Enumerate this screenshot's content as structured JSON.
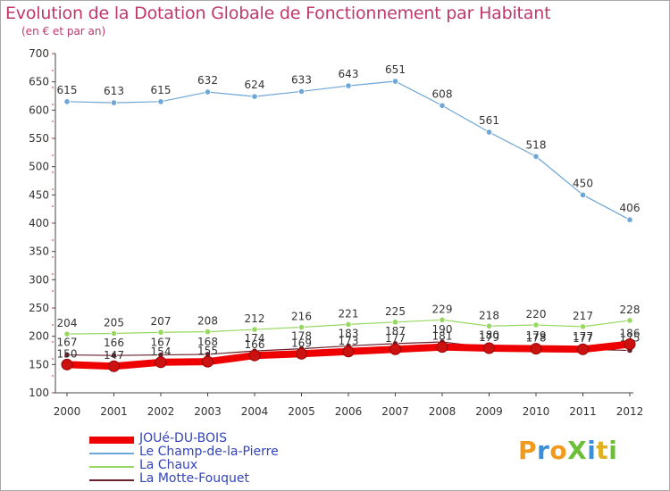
{
  "header": {
    "title": "Evolution de la Dotation Globale de Fonctionnement par Habitant",
    "subtitle": "(en € et par an)"
  },
  "logo": {
    "text": "ProXiti"
  },
  "colors": {
    "title": "#c0386a",
    "jouedubois": "#ee0000",
    "champ": "#6ea6d6",
    "chaux": "#96d860",
    "motte": "#6b1f2a"
  },
  "chart_data": {
    "type": "line",
    "x": [
      "2000",
      "2001",
      "2002",
      "2003",
      "2004",
      "2005",
      "2006",
      "2007",
      "2008",
      "2009",
      "2010",
      "2011",
      "2012"
    ],
    "ylim": [
      100,
      700
    ],
    "yticks": [
      100,
      150,
      200,
      250,
      300,
      350,
      400,
      450,
      500,
      550,
      600,
      650,
      700
    ],
    "grid": false,
    "legend_position": "bottom-left",
    "series": [
      {
        "name": "JOUé-DU-BOIS",
        "color": "#ee0000",
        "values": [
          150,
          147,
          154,
          155,
          166,
          169,
          173,
          177,
          181,
          179,
          178,
          177,
          186
        ]
      },
      {
        "name": "Le Champ-de-la-Pierre",
        "color": "#6ea6d6",
        "values": [
          615,
          613,
          615,
          632,
          624,
          633,
          643,
          651,
          608,
          561,
          518,
          450,
          406
        ]
      },
      {
        "name": "La Chaux",
        "color": "#96d860",
        "values": [
          204,
          205,
          207,
          208,
          212,
          216,
          221,
          225,
          229,
          218,
          220,
          217,
          228
        ]
      },
      {
        "name": "La Motte-Fouquet",
        "color": "#6b1f2a",
        "values": [
          167,
          166,
          167,
          168,
          174,
          178,
          183,
          187,
          190,
          180,
          179,
          177,
          175
        ]
      }
    ]
  }
}
